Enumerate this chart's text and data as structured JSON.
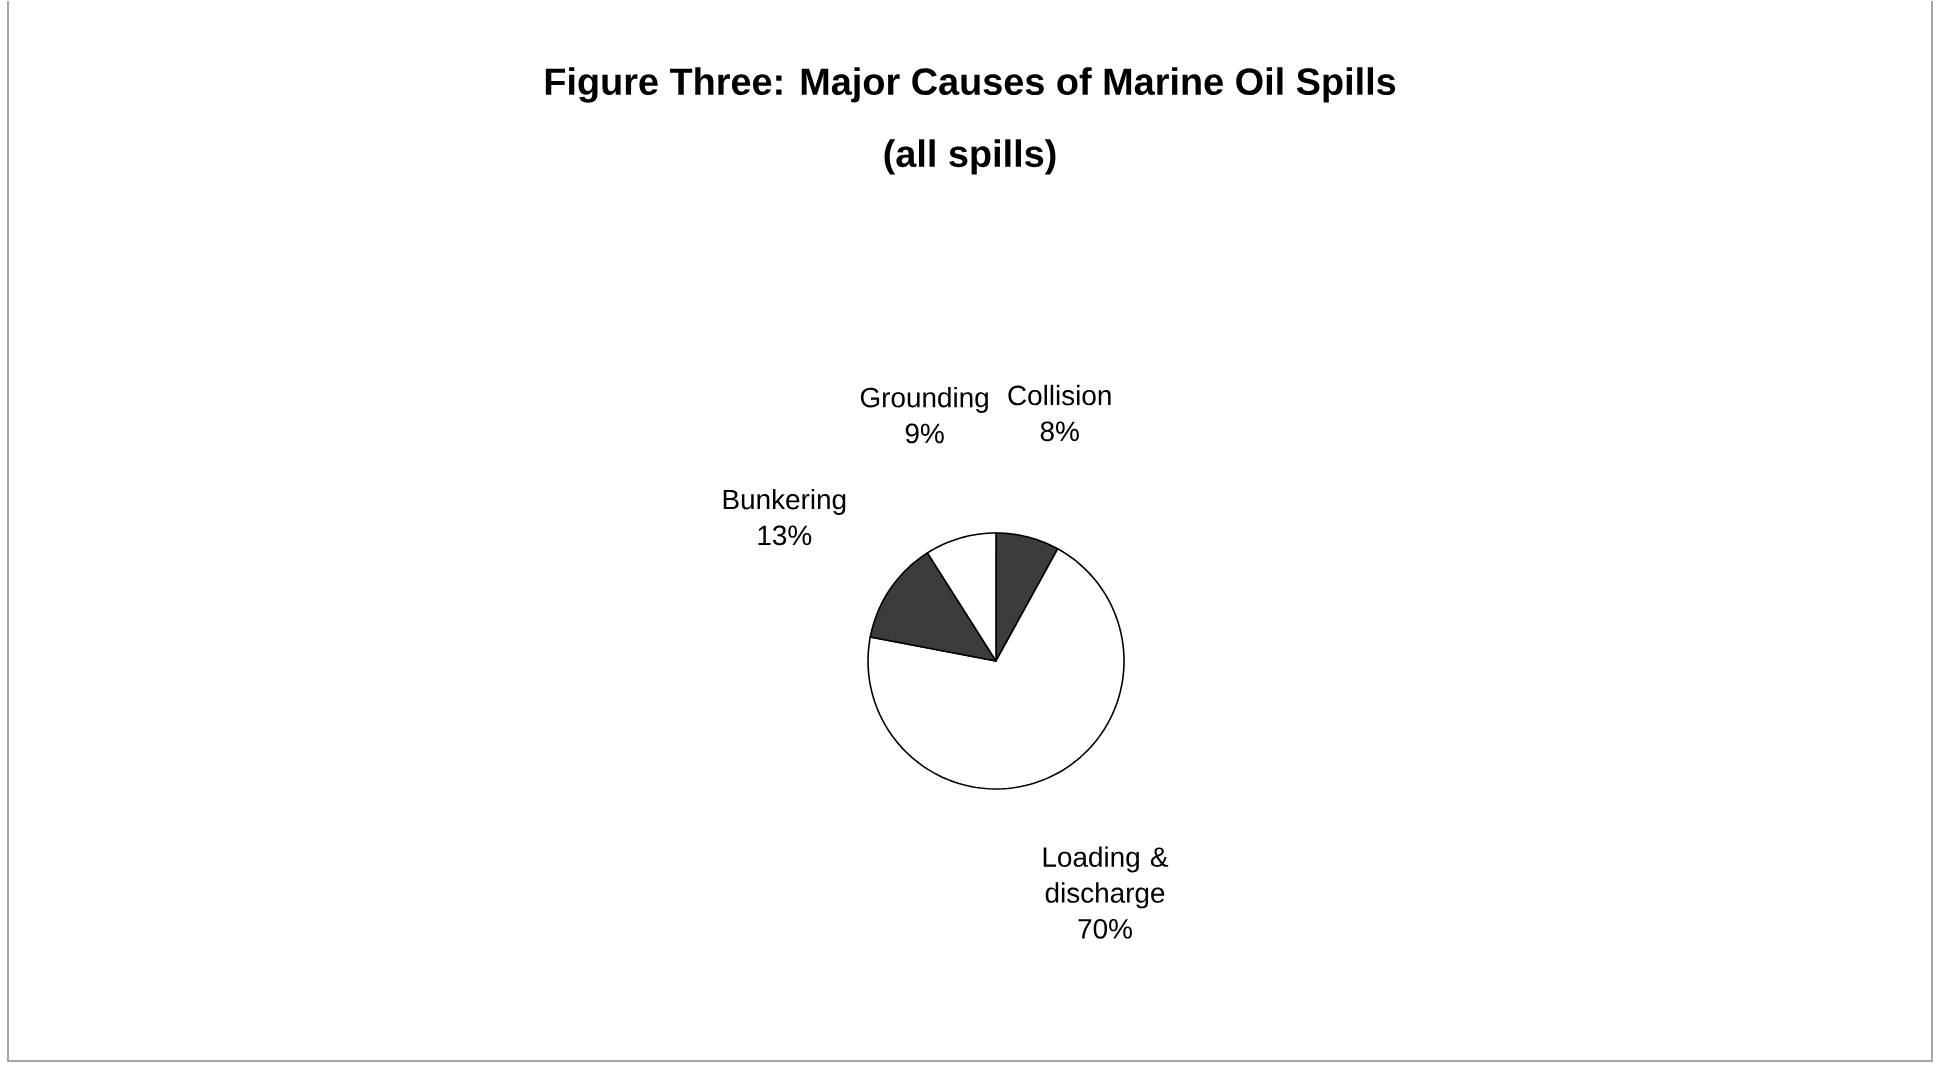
{
  "chart_data": {
    "type": "pie",
    "title": "Figure Three: Major Causes of Marine Oil Spills",
    "subtitle": "(all spills)",
    "categories": [
      "Collision",
      "Loading & discharge",
      "Bunkering",
      "Grounding"
    ],
    "values": [
      8,
      70,
      13,
      9
    ],
    "colors": [
      "#3c3c3c",
      "#ffffff",
      "#3c3c3c",
      "#ffffff"
    ],
    "value_labels": [
      "8%",
      "70%",
      "13%",
      "9%"
    ]
  }
}
